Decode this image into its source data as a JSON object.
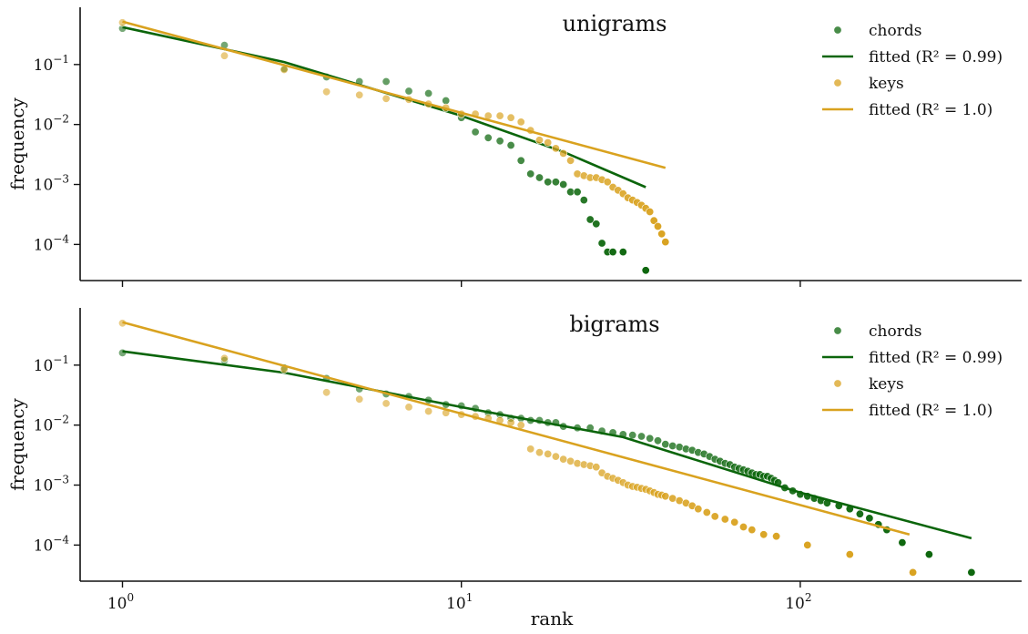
{
  "colors": {
    "chords": "#0b650b",
    "keys": "#d9a21f",
    "axis": "#111111"
  },
  "xlabel": "rank",
  "chart_data": [
    {
      "type": "scatter",
      "title": "unigrams",
      "ylabel": "frequency",
      "xscale": "log",
      "yscale": "log",
      "xlim": [
        0.75,
        450
      ],
      "ylim": [
        2.5e-05,
        0.9
      ],
      "xticks": [
        {
          "v": 1,
          "e": "0"
        },
        {
          "v": 10,
          "e": "1"
        },
        {
          "v": 100,
          "e": "2"
        }
      ],
      "yticks": [
        {
          "v": 0.1,
          "e": "−1"
        },
        {
          "v": 0.01,
          "e": "−2"
        },
        {
          "v": 0.001,
          "e": "−3"
        },
        {
          "v": 0.0001,
          "e": "−4"
        }
      ],
      "tick_base": "10",
      "legend_position": "top-right",
      "series": [
        {
          "name": "chords",
          "kind": "points",
          "color": "#0b650b",
          "x": [
            1,
            2,
            3,
            4,
            5,
            6,
            7,
            8,
            9,
            10,
            11,
            12,
            13,
            14,
            15,
            16,
            17,
            18,
            19,
            20,
            21,
            22,
            23,
            24,
            25,
            26,
            27,
            28,
            30,
            35
          ],
          "y": [
            0.4,
            0.21,
            0.085,
            0.062,
            0.052,
            0.052,
            0.036,
            0.033,
            0.025,
            0.013,
            0.0075,
            0.006,
            0.0053,
            0.0045,
            0.0025,
            0.0015,
            0.0013,
            0.0011,
            0.0011,
            0.001,
            0.00075,
            0.00075,
            0.00055,
            0.00026,
            0.00022,
            0.000105,
            7.5e-05,
            7.5e-05,
            7.5e-05,
            3.7e-05
          ]
        },
        {
          "name": "fitted (R² = 0.99)",
          "kind": "line",
          "color": "#0b650b",
          "x": [
            1,
            3,
            10,
            20,
            35
          ],
          "y": [
            0.42,
            0.11,
            0.014,
            0.0035,
            0.0009
          ]
        },
        {
          "name": "keys",
          "kind": "points",
          "color": "#d9a21f",
          "x": [
            1,
            2,
            3,
            4,
            5,
            6,
            7,
            8,
            9,
            10,
            11,
            12,
            13,
            14,
            15,
            16,
            17,
            18,
            19,
            20,
            21,
            22,
            23,
            24,
            25,
            26,
            27,
            28,
            29,
            30,
            31,
            32,
            33,
            34,
            35,
            36,
            37,
            38,
            39,
            40
          ],
          "y": [
            0.5,
            0.14,
            0.082,
            0.035,
            0.031,
            0.027,
            0.026,
            0.022,
            0.019,
            0.015,
            0.015,
            0.014,
            0.014,
            0.013,
            0.011,
            0.008,
            0.0055,
            0.005,
            0.004,
            0.0033,
            0.0025,
            0.0015,
            0.0014,
            0.0013,
            0.0013,
            0.0012,
            0.0011,
            0.0009,
            0.0008,
            0.0007,
            0.0006,
            0.00055,
            0.0005,
            0.00045,
            0.0004,
            0.00035,
            0.00025,
            0.0002,
            0.00015,
            0.00011
          ]
        },
        {
          "name": "fitted (R² = 1.0)",
          "kind": "line",
          "color": "#d9a21f",
          "x": [
            1,
            40
          ],
          "y": [
            0.52,
            0.0019
          ]
        }
      ]
    },
    {
      "type": "scatter",
      "title": "bigrams",
      "ylabel": "frequency",
      "xscale": "log",
      "yscale": "log",
      "xlim": [
        0.75,
        450
      ],
      "ylim": [
        2.5e-05,
        0.9
      ],
      "xticks": [
        {
          "v": 1,
          "e": "0"
        },
        {
          "v": 10,
          "e": "1"
        },
        {
          "v": 100,
          "e": "2"
        }
      ],
      "yticks": [
        {
          "v": 0.1,
          "e": "−1"
        },
        {
          "v": 0.01,
          "e": "−2"
        },
        {
          "v": 0.001,
          "e": "−3"
        },
        {
          "v": 0.0001,
          "e": "−4"
        }
      ],
      "tick_base": "10",
      "legend_position": "top-right",
      "series": [
        {
          "name": "chords",
          "kind": "points",
          "color": "#0b650b",
          "x": [
            1,
            2,
            3,
            4,
            5,
            6,
            7,
            8,
            9,
            10,
            11,
            12,
            13,
            14,
            15,
            16,
            17,
            18,
            19,
            20,
            22,
            24,
            26,
            28,
            30,
            32,
            34,
            36,
            38,
            40,
            42,
            44,
            46,
            48,
            50,
            52,
            54,
            56,
            58,
            60,
            62,
            64,
            66,
            68,
            70,
            72,
            74,
            76,
            78,
            80,
            82,
            84,
            86,
            90,
            95,
            100,
            105,
            110,
            115,
            120,
            130,
            140,
            150,
            160,
            170,
            180,
            200,
            240,
            320
          ],
          "y": [
            0.16,
            0.12,
            0.09,
            0.06,
            0.04,
            0.033,
            0.03,
            0.026,
            0.022,
            0.021,
            0.019,
            0.016,
            0.015,
            0.013,
            0.013,
            0.012,
            0.012,
            0.011,
            0.011,
            0.0095,
            0.009,
            0.009,
            0.008,
            0.0075,
            0.007,
            0.0068,
            0.0065,
            0.006,
            0.0055,
            0.0048,
            0.0045,
            0.0043,
            0.004,
            0.0038,
            0.0035,
            0.0033,
            0.003,
            0.0027,
            0.0025,
            0.0023,
            0.0022,
            0.002,
            0.0019,
            0.0018,
            0.0017,
            0.0016,
            0.0015,
            0.0015,
            0.0014,
            0.0014,
            0.0013,
            0.0012,
            0.0011,
            0.0009,
            0.0008,
            0.0007,
            0.00065,
            0.0006,
            0.00055,
            0.0005,
            0.00045,
            0.0004,
            0.00033,
            0.00028,
            0.00022,
            0.00018,
            0.00011,
            7e-05,
            3.5e-05
          ]
        },
        {
          "name": "fitted (R² = 0.99)",
          "kind": "line",
          "color": "#0b650b",
          "x": [
            1,
            3,
            10,
            30,
            100,
            320
          ],
          "y": [
            0.17,
            0.075,
            0.02,
            0.0063,
            0.00075,
            0.00013
          ]
        },
        {
          "name": "keys",
          "kind": "points",
          "color": "#d9a21f",
          "x": [
            1,
            2,
            3,
            4,
            5,
            6,
            7,
            8,
            9,
            10,
            11,
            12,
            13,
            14,
            15,
            16,
            17,
            18,
            19,
            20,
            21,
            22,
            23,
            24,
            25,
            26,
            27,
            28,
            29,
            30,
            31,
            32,
            33,
            34,
            35,
            36,
            37,
            38,
            39,
            40,
            42,
            44,
            46,
            48,
            50,
            53,
            56,
            60,
            64,
            68,
            72,
            78,
            85,
            105,
            140,
            215
          ],
          "y": [
            0.5,
            0.13,
            0.085,
            0.035,
            0.027,
            0.023,
            0.02,
            0.017,
            0.016,
            0.015,
            0.014,
            0.013,
            0.012,
            0.011,
            0.01,
            0.004,
            0.0035,
            0.0033,
            0.003,
            0.0027,
            0.0025,
            0.0023,
            0.0022,
            0.0021,
            0.002,
            0.0016,
            0.0014,
            0.0013,
            0.0012,
            0.0011,
            0.001,
            0.00095,
            0.00092,
            0.00088,
            0.00085,
            0.0008,
            0.00075,
            0.0007,
            0.00068,
            0.00065,
            0.0006,
            0.00055,
            0.0005,
            0.00045,
            0.0004,
            0.00035,
            0.0003,
            0.00027,
            0.00024,
            0.0002,
            0.00018,
            0.00015,
            0.00014,
            0.0001,
            7e-05,
            3.5e-05
          ]
        },
        {
          "name": "fitted (R² = 1.0)",
          "kind": "line",
          "color": "#d9a21f",
          "x": [
            1,
            210
          ],
          "y": [
            0.52,
            0.00015
          ]
        }
      ]
    }
  ]
}
